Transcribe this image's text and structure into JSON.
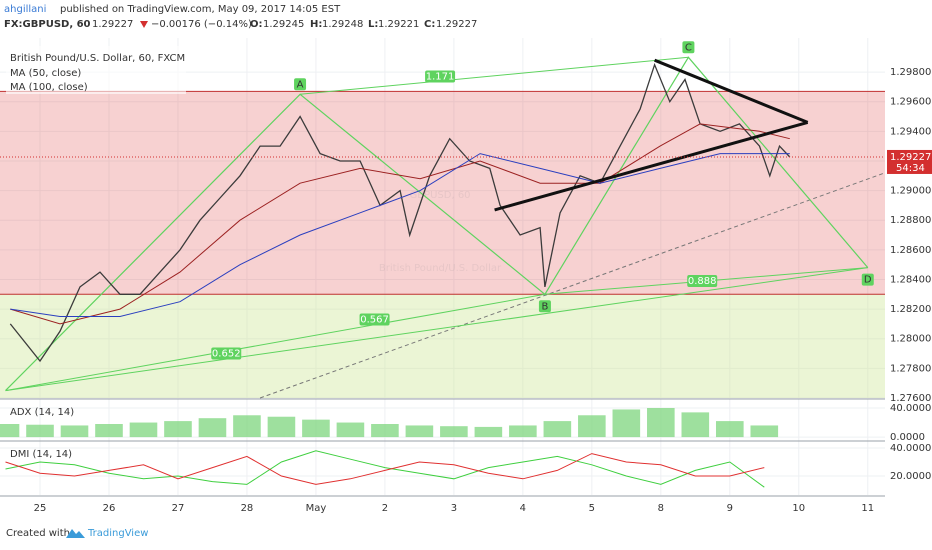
{
  "header": {
    "user": "ahgillani",
    "published": "published on TradingView.com, May 09, 2017 14:05 EST",
    "symbol": "FX:GBPUSD, 60",
    "last": "1.29227",
    "change": "−0.00176 (−0.14%)",
    "o_label": "O:",
    "o": "1.29245",
    "h_label": "H:",
    "h": "1.29248",
    "l_label": "L:",
    "l": "1.29221",
    "c_label": "C:",
    "c": "1.29227"
  },
  "footer": {
    "created": "Created with",
    "brand": "TradingView"
  },
  "chart_data": [
    {
      "type": "line",
      "title": "British Pound/U.S. Dollar, 60, FXCM",
      "watermark": [
        "GBPUSD, 60",
        "British Pound/U.S. Dollar"
      ],
      "xlim": [
        -0.58,
        12.25
      ],
      "ylim": [
        1.276,
        1.3003
      ],
      "xticks": [
        {
          "value": 0,
          "label": "25"
        },
        {
          "value": 1,
          "label": "26"
        },
        {
          "value": 2,
          "label": "27"
        },
        {
          "value": 3,
          "label": "28"
        },
        {
          "value": 4,
          "label": "May"
        },
        {
          "value": 5,
          "label": "2"
        },
        {
          "value": 6,
          "label": "3"
        },
        {
          "value": 7,
          "label": "4"
        },
        {
          "value": 8,
          "label": "5"
        },
        {
          "value": 9,
          "label": "8"
        },
        {
          "value": 10,
          "label": "9"
        },
        {
          "value": 11,
          "label": "10"
        },
        {
          "value": 12,
          "label": "11"
        }
      ],
      "yticks": [
        {
          "value": 1.276,
          "label": "1.27600"
        },
        {
          "value": 1.278,
          "label": "1.27800"
        },
        {
          "value": 1.28,
          "label": "1.28000"
        },
        {
          "value": 1.282,
          "label": "1.28200"
        },
        {
          "value": 1.284,
          "label": "1.28400"
        },
        {
          "value": 1.286,
          "label": "1.28600"
        },
        {
          "value": 1.288,
          "label": "1.28800"
        },
        {
          "value": 1.29,
          "label": "1.29000"
        },
        {
          "value": 1.292,
          "label": "1.29200"
        },
        {
          "value": 1.294,
          "label": "1.29400"
        },
        {
          "value": 1.296,
          "label": "1.29600"
        },
        {
          "value": 1.298,
          "label": "1.29800"
        }
      ],
      "grid": true,
      "color": "#3b3b3b",
      "x": [
        -0.43,
        0,
        0.29,
        0.58,
        0.87,
        1.16,
        1.45,
        1.74,
        2.03,
        2.32,
        2.61,
        2.9,
        3.19,
        3.48,
        3.77,
        4.06,
        4.35,
        4.64,
        4.93,
        5.22,
        5.36,
        5.65,
        5.94,
        6.23,
        6.52,
        6.67,
        6.96,
        7.25,
        7.32,
        7.54,
        7.83,
        8.12,
        8.41,
        8.7,
        8.91,
        9.13,
        9.35,
        9.57,
        9.86,
        10.14,
        10.43,
        10.58,
        10.72,
        10.87
      ],
      "values": [
        1.281,
        1.2785,
        1.2805,
        1.2835,
        1.2845,
        1.283,
        1.283,
        1.2845,
        1.286,
        1.288,
        1.2895,
        1.291,
        1.293,
        1.293,
        1.295,
        1.2925,
        1.292,
        1.292,
        1.289,
        1.29,
        1.287,
        1.291,
        1.2935,
        1.292,
        1.2915,
        1.289,
        1.287,
        1.2875,
        1.2835,
        1.2885,
        1.291,
        1.2905,
        1.293,
        1.2955,
        1.2985,
        1.296,
        1.2975,
        1.2945,
        1.294,
        1.2945,
        1.293,
        1.291,
        1.293,
        1.29227
      ],
      "series": [
        {
          "name": "MA (50, close)",
          "color": "#9c2222",
          "x": [
            -0.43,
            0.29,
            1.16,
            2.03,
            2.9,
            3.77,
            4.64,
            5.51,
            6.38,
            7.25,
            8.12,
            8.99,
            9.57,
            10.43,
            10.87
          ],
          "values": [
            1.282,
            1.281,
            1.282,
            1.2845,
            1.288,
            1.2905,
            1.2915,
            1.2908,
            1.292,
            1.2905,
            1.2905,
            1.293,
            1.2945,
            1.294,
            1.2935
          ]
        },
        {
          "name": "MA (100, close)",
          "color": "#2b3fbf",
          "x": [
            -0.43,
            0.29,
            1.16,
            2.03,
            2.9,
            3.77,
            4.64,
            5.51,
            6.38,
            7.25,
            8.12,
            8.99,
            9.86,
            10.87
          ],
          "values": [
            1.282,
            1.2815,
            1.2815,
            1.2825,
            1.285,
            1.287,
            1.2885,
            1.29,
            1.2925,
            1.2915,
            1.2905,
            1.2915,
            1.2925,
            1.2925
          ]
        }
      ],
      "zones": [
        {
          "from": 1.283,
          "to": 1.2967,
          "color": "rgba(228,90,90,0.28)"
        },
        {
          "from": 1.276,
          "to": 1.283,
          "color": "rgba(205,230,150,0.4)"
        }
      ],
      "last": 1.29227,
      "countdown": "54:34",
      "pattern": {
        "color": "#5fd35f",
        "x": [
          -0.5,
          3.77,
          7.32,
          9.4,
          12.0
        ],
        "y": [
          1.2765,
          1.2965,
          1.283,
          1.299,
          1.2848
        ],
        "labels": [
          null,
          "A",
          "B",
          "C",
          "D"
        ]
      },
      "ratios": [
        {
          "value": 1.171,
          "x": 5.8,
          "y": 1.2977
        },
        {
          "value": 0.652,
          "x": 2.7,
          "y": 1.279
        },
        {
          "value": 0.567,
          "x": 4.85,
          "y": 1.2813
        },
        {
          "value": 0.888,
          "x": 9.6,
          "y": 1.2839
        }
      ],
      "trendlines": [
        {
          "color": "#111111",
          "x": [
            8.91,
            11.13
          ],
          "y": [
            1.2988,
            1.2946
          ]
        },
        {
          "color": "#111111",
          "x": [
            6.59,
            11.13
          ],
          "y": [
            1.2887,
            1.2946
          ]
        }
      ]
    },
    {
      "type": "bar",
      "title": "ADX (14, 14)",
      "color": "#7ed67e",
      "ylim": [
        -4,
        51
      ],
      "yticks": [
        {
          "value": 0,
          "label": "0.0000"
        },
        {
          "value": 40,
          "label": "40.0000"
        }
      ],
      "x": [
        -0.5,
        0,
        0.5,
        1,
        1.5,
        2,
        2.5,
        3,
        3.5,
        4,
        4.5,
        5,
        5.5,
        6,
        6.5,
        7,
        7.5,
        8,
        8.5,
        9,
        9.5,
        10,
        10.5
      ],
      "values": [
        18,
        17,
        16,
        18,
        20,
        22,
        26,
        30,
        28,
        24,
        20,
        18,
        16,
        15,
        14,
        16,
        22,
        30,
        38,
        40,
        34,
        22,
        16
      ]
    },
    {
      "type": "line",
      "title": "DMI (14, 14)",
      "ylim": [
        6.4,
        44.3
      ],
      "yticks": [
        {
          "value": 20,
          "label": "20.0000"
        },
        {
          "value": 40,
          "label": "40.0000"
        }
      ],
      "series": [
        {
          "color": "#3fcf3f",
          "x": [
            -0.5,
            0,
            0.5,
            1,
            1.5,
            2,
            2.5,
            3,
            3.5,
            4,
            4.5,
            5,
            5.5,
            6,
            6.5,
            7,
            7.5,
            8,
            8.5,
            9,
            9.5,
            10,
            10.5
          ],
          "values": [
            25,
            30,
            28,
            22,
            18,
            20,
            16,
            14,
            30,
            38,
            32,
            26,
            22,
            18,
            26,
            30,
            34,
            28,
            20,
            14,
            24,
            30,
            12
          ]
        },
        {
          "color": "#e03030",
          "x": [
            -0.5,
            0,
            0.5,
            1,
            1.5,
            2,
            2.5,
            3,
            3.5,
            4,
            4.5,
            5,
            5.5,
            6,
            6.5,
            7,
            7.5,
            8,
            8.5,
            9,
            9.5,
            10,
            10.5
          ],
          "values": [
            30,
            22,
            20,
            24,
            28,
            18,
            26,
            34,
            20,
            14,
            18,
            24,
            30,
            28,
            22,
            18,
            24,
            36,
            30,
            28,
            20,
            20,
            26
          ]
        }
      ]
    }
  ]
}
